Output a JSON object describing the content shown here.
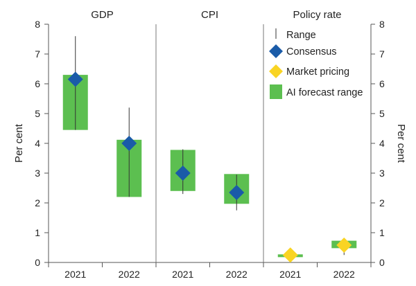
{
  "chart_data": {
    "type": "range",
    "panels": [
      {
        "title": "GDP",
        "categories": [
          "2021",
          "2022"
        ]
      },
      {
        "title": "CPI",
        "categories": [
          "2021",
          "2022"
        ]
      },
      {
        "title": "Policy rate",
        "categories": [
          "2021",
          "2022"
        ]
      }
    ],
    "series": [
      {
        "name": "Range",
        "mark": "line",
        "values": [
          {
            "panel": "GDP",
            "category": "2021",
            "low": 4.45,
            "high": 7.6
          },
          {
            "panel": "GDP",
            "category": "2022",
            "low": 2.2,
            "high": 5.2
          },
          {
            "panel": "CPI",
            "category": "2021",
            "low": 2.3,
            "high": 3.8
          },
          {
            "panel": "CPI",
            "category": "2022",
            "low": 1.75,
            "high": 2.95
          },
          {
            "panel": "Policy rate",
            "category": "2021",
            "low": 0.2,
            "high": 0.25
          },
          {
            "panel": "Policy rate",
            "category": "2022",
            "low": 0.25,
            "high": 0.75
          }
        ]
      },
      {
        "name": "Consensus",
        "mark": "diamond",
        "values": [
          {
            "panel": "GDP",
            "category": "2021",
            "value": 6.15
          },
          {
            "panel": "GDP",
            "category": "2022",
            "value": 4.0
          },
          {
            "panel": "CPI",
            "category": "2021",
            "value": 3.0
          },
          {
            "panel": "CPI",
            "category": "2022",
            "value": 2.35
          }
        ]
      },
      {
        "name": "Market pricing",
        "mark": "diamond",
        "values": [
          {
            "panel": "Policy rate",
            "category": "2021",
            "value": 0.25
          },
          {
            "panel": "Policy rate",
            "category": "2022",
            "value": 0.58
          }
        ]
      },
      {
        "name": "AI forecast range",
        "mark": "bar",
        "values": [
          {
            "panel": "GDP",
            "category": "2021",
            "low": 4.45,
            "high": 6.3
          },
          {
            "panel": "GDP",
            "category": "2022",
            "low": 2.2,
            "high": 4.12
          },
          {
            "panel": "CPI",
            "category": "2021",
            "low": 2.4,
            "high": 3.78
          },
          {
            "panel": "CPI",
            "category": "2022",
            "low": 1.97,
            "high": 2.97
          },
          {
            "panel": "Policy rate",
            "category": "2021",
            "low": 0.2,
            "high": 0.25
          },
          {
            "panel": "Policy rate",
            "category": "2022",
            "low": 0.48,
            "high": 0.73
          }
        ]
      }
    ],
    "ylabel_left": "Per cent",
    "ylabel_right": "Per cent",
    "ylim": [
      0,
      8
    ],
    "yticks": [
      "0",
      "1",
      "2",
      "3",
      "4",
      "5",
      "6",
      "7",
      "8"
    ],
    "grid": false,
    "legend_position": "top-right",
    "colors": {
      "bar": "#5cbf50",
      "consensus": "#1a5ba8",
      "market": "#f9d423",
      "range_line": "#333333",
      "axis": "#555555"
    }
  }
}
